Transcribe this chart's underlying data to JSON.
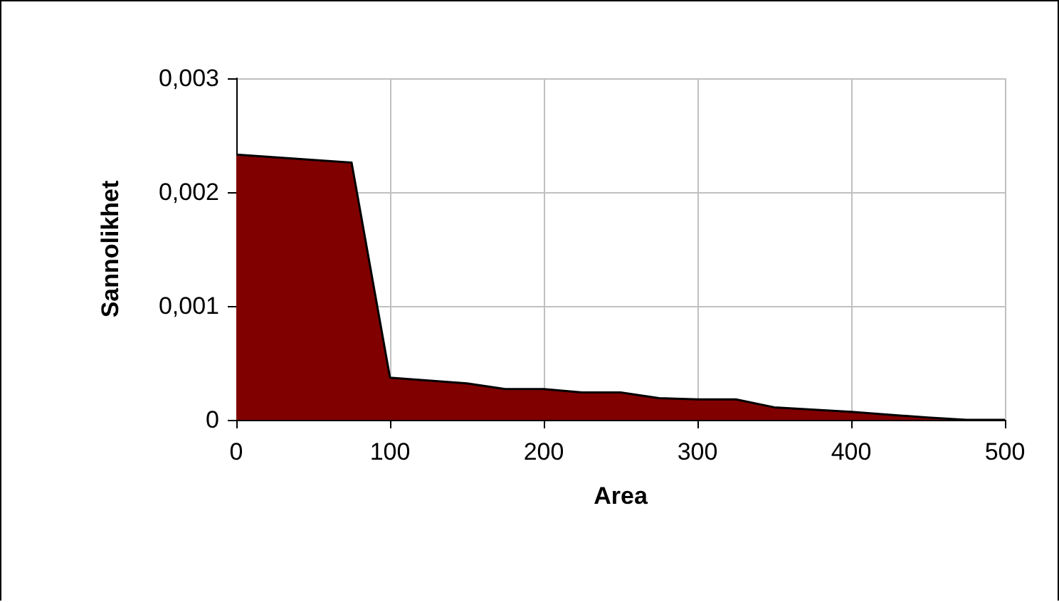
{
  "chart_data": {
    "type": "area",
    "xlabel": "Area",
    "ylabel": "Sannolikhet",
    "x": [
      0,
      75,
      100,
      150,
      175,
      200,
      225,
      250,
      275,
      300,
      325,
      350,
      400,
      450,
      475,
      500
    ],
    "series": [
      {
        "color": "#800000",
        "values": [
          0.00233,
          0.00226,
          0.00037,
          0.00032,
          0.00027,
          0.00027,
          0.00024,
          0.00024,
          0.00019,
          0.00018,
          0.00018,
          0.00011,
          7e-05,
          2e-05,
          0,
          0
        ]
      }
    ],
    "xlim": [
      0,
      500
    ],
    "xticks": [
      0,
      100,
      200,
      300,
      400,
      500
    ],
    "ylim": [
      0,
      0.003
    ],
    "yticks": [
      0,
      {
        "value": 0.001,
        "label": "0,001"
      },
      {
        "value": 0.002,
        "label": "0,002"
      },
      {
        "value": 0.003,
        "label": "0,003"
      }
    ],
    "grid": true,
    "marker": "none",
    "line_style": "solid"
  }
}
